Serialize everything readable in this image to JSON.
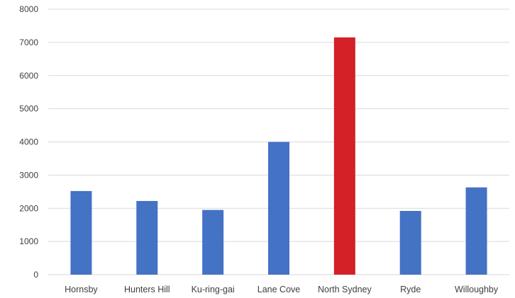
{
  "chart_data": {
    "type": "bar",
    "title": "",
    "xlabel": "",
    "ylabel": "",
    "categories": [
      "Hornsby",
      "Hunters Hill",
      "Ku-ring-gai",
      "Lane Cove",
      "North Sydney",
      "Ryde",
      "Willoughby"
    ],
    "values": [
      2520,
      2220,
      1950,
      4000,
      7150,
      1920,
      2630
    ],
    "ylim": [
      0,
      8000
    ],
    "yticks": [
      0,
      1000,
      2000,
      3000,
      4000,
      5000,
      6000,
      7000,
      8000
    ],
    "grid": true,
    "legend": "none",
    "colors": {
      "default": "#4472C4",
      "highlight": "#D42027",
      "highlight_category": "North Sydney",
      "grid": "#D9D9D9"
    }
  }
}
